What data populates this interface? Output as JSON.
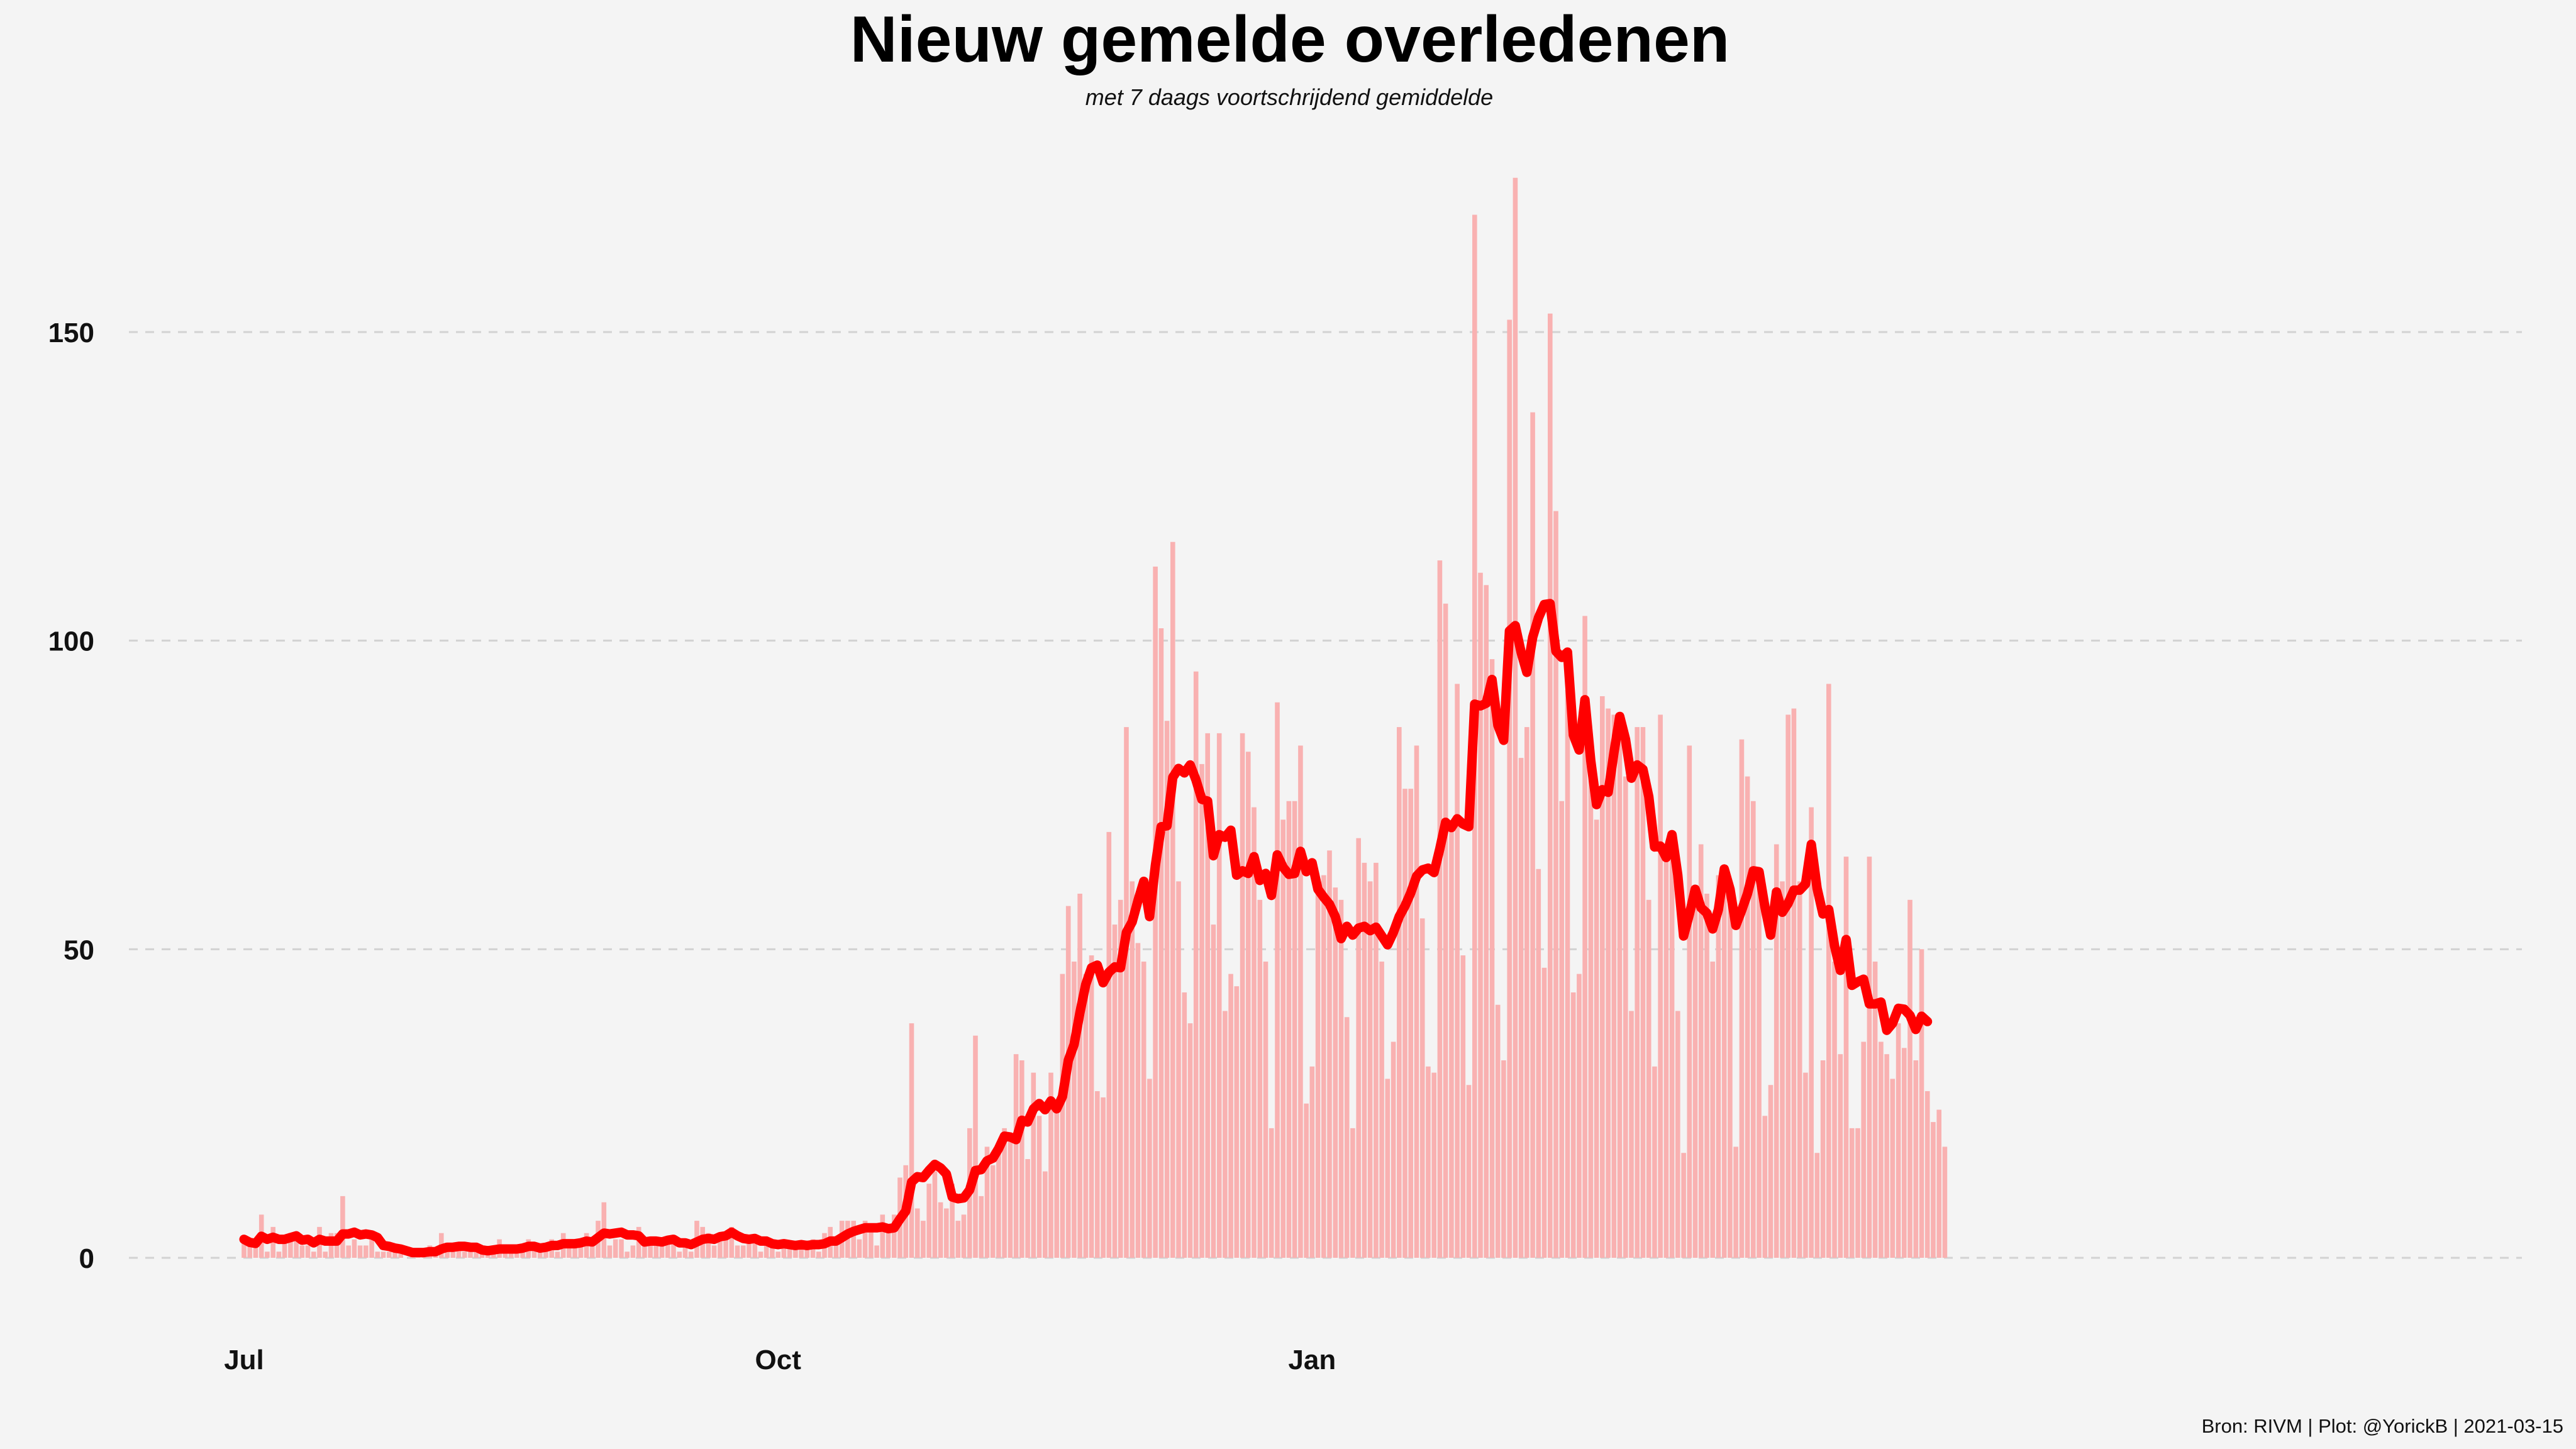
{
  "chart_data": {
    "type": "bar",
    "title": "Nieuw gemelde overledenen",
    "subtitle": "met 7 daags voortschrijdend gemiddelde",
    "caption": "Bron: RIVM | Plot: @YorickB |  2021-03-15",
    "start_date": "2020-07-01",
    "x_ticks": [
      {
        "label": "Jul",
        "date": "2020-07-01"
      },
      {
        "label": "Oct",
        "date": "2020-10-01"
      },
      {
        "label": "Jan",
        "date": "2021-01-01"
      }
    ],
    "y_ticks": [
      0,
      50,
      100,
      150
    ],
    "ylim": [
      0,
      176
    ],
    "grid": true,
    "colors": {
      "bars": "#f9b1b1",
      "moving_average": "#ff0000",
      "background": "#f4f4f4"
    },
    "series": [
      {
        "name": "Nieuw gemelde overledenen",
        "kind": "bar",
        "values": [
          3,
          2,
          2,
          7,
          1,
          5,
          1,
          3,
          4,
          4,
          2,
          2,
          1,
          5,
          1,
          4,
          4,
          10,
          2,
          3,
          2,
          2,
          3,
          1,
          1,
          1,
          1,
          1,
          0,
          1,
          1,
          1,
          2,
          1,
          4,
          2,
          1,
          2,
          1,
          1,
          1,
          1,
          1,
          2,
          3,
          1,
          1,
          1,
          2,
          3,
          2,
          1,
          2,
          3,
          1,
          4,
          3,
          2,
          2,
          4,
          2,
          6,
          9,
          2,
          3,
          3,
          1,
          2,
          5,
          2,
          3,
          3,
          2,
          3,
          3,
          1,
          2,
          1,
          6,
          5,
          4,
          2,
          4,
          3,
          5,
          2,
          2,
          3,
          3,
          1,
          3,
          2,
          1,
          3,
          2,
          2,
          2,
          2,
          3,
          1,
          4,
          5,
          2,
          6,
          6,
          6,
          3,
          6,
          5,
          2,
          7,
          4,
          7,
          13,
          15,
          38,
          8,
          6,
          12,
          14,
          9,
          8,
          12,
          6,
          7,
          21,
          36,
          10,
          18,
          15,
          17,
          21,
          20,
          33,
          32,
          16,
          30,
          23,
          14,
          30,
          24,
          46,
          57,
          48,
          59,
          46,
          49,
          27,
          26,
          69,
          54,
          58,
          86,
          61,
          51,
          48,
          29,
          112,
          102,
          87,
          116,
          61,
          43,
          38,
          95,
          80,
          85,
          54,
          85,
          40,
          46,
          44,
          85,
          82,
          73,
          58,
          48,
          21,
          90,
          71,
          74,
          74,
          83,
          25,
          31,
          60,
          62,
          66,
          60,
          58,
          39,
          21,
          68,
          64,
          61,
          64,
          48,
          29,
          35,
          86,
          76,
          76,
          83,
          55,
          31,
          30,
          113,
          106,
          70,
          93,
          49,
          28,
          169,
          111,
          109,
          97,
          41,
          32,
          152,
          175,
          81,
          86,
          137,
          63,
          47,
          153,
          121,
          74,
          92,
          43,
          46,
          104,
          84,
          71,
          91,
          89,
          88,
          87,
          78,
          40,
          86,
          86,
          58,
          31,
          88,
          65,
          66,
          40,
          17,
          83,
          59,
          67,
          59,
          48,
          62,
          63,
          60,
          18,
          84,
          78,
          74,
          61,
          23,
          28,
          67,
          61,
          88,
          89,
          61,
          30,
          73,
          17,
          32,
          93,
          48,
          33,
          65,
          21,
          21,
          35,
          65,
          48,
          35,
          33,
          29,
          38,
          34,
          58,
          32,
          50,
          27,
          22,
          24,
          18
        ]
      },
      {
        "name": "7 daags voortschrijdend gemiddelde",
        "kind": "line",
        "values": "computed"
      }
    ]
  }
}
